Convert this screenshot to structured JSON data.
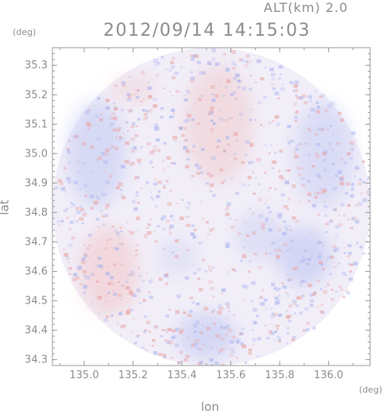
{
  "header": {
    "altitude_label": "ALT(km) 2.0",
    "timestamp": "2012/09/14 14:15:03"
  },
  "axes": {
    "x_label": "lon",
    "y_label": "lat",
    "x_unit": "(deg)",
    "y_unit": "(deg)"
  },
  "colors": {
    "axis": "#9a9a9a",
    "positive": "#f2b7b7",
    "negative": "#b9c1f2",
    "neutral": "#f1eef8"
  },
  "chart_data": {
    "type": "heatmap",
    "title": "",
    "xlabel": "lon",
    "ylabel": "lat",
    "xlim": [
      134.87,
      136.17
    ],
    "ylim": [
      34.28,
      35.36
    ],
    "x_ticks": [
      135.0,
      135.2,
      135.4,
      135.6,
      135.8,
      136.0
    ],
    "x_tick_labels": [
      "135.0",
      "135.2",
      "135.4",
      "135.6",
      "135.8",
      "136.0"
    ],
    "y_ticks": [
      34.3,
      34.4,
      34.5,
      34.6,
      34.7,
      34.8,
      34.9,
      35.0,
      35.1,
      35.2,
      35.3
    ],
    "y_tick_labels": [
      "34.3",
      "34.4",
      "34.5",
      "34.6",
      "34.7",
      "34.8",
      "34.9",
      "35.0",
      "35.1",
      "35.2",
      "35.3"
    ],
    "radar_domain": {
      "center_lon": 135.52,
      "center_lat": 34.82,
      "radius_lon_deg": 0.65,
      "radius_lat_deg": 0.54
    },
    "patches": [
      {
        "lon": 135.55,
        "lat": 35.1,
        "r_lon": 0.14,
        "r_lat": 0.2,
        "sign": "positive",
        "intensity": 0.35
      },
      {
        "lon": 135.2,
        "lat": 35.22,
        "r_lon": 0.1,
        "r_lat": 0.05,
        "sign": "positive",
        "intensity": 0.25
      },
      {
        "lon": 135.9,
        "lat": 34.65,
        "r_lon": 0.11,
        "r_lat": 0.1,
        "sign": "negative",
        "intensity": 0.55
      },
      {
        "lon": 135.72,
        "lat": 34.72,
        "r_lon": 0.1,
        "r_lat": 0.08,
        "sign": "negative",
        "intensity": 0.35
      },
      {
        "lon": 135.5,
        "lat": 34.38,
        "r_lon": 0.12,
        "r_lat": 0.08,
        "sign": "negative",
        "intensity": 0.5
      },
      {
        "lon": 135.38,
        "lat": 34.65,
        "r_lon": 0.08,
        "r_lat": 0.06,
        "sign": "negative",
        "intensity": 0.25
      },
      {
        "lon": 135.05,
        "lat": 35.0,
        "r_lon": 0.12,
        "r_lat": 0.18,
        "sign": "mixed",
        "intensity": 0.45
      },
      {
        "lon": 135.1,
        "lat": 34.6,
        "r_lon": 0.12,
        "r_lat": 0.15,
        "sign": "mixed",
        "intensity": 0.4
      },
      {
        "lon": 135.98,
        "lat": 35.0,
        "r_lon": 0.12,
        "r_lat": 0.18,
        "sign": "mixed",
        "intensity": 0.4
      }
    ]
  }
}
